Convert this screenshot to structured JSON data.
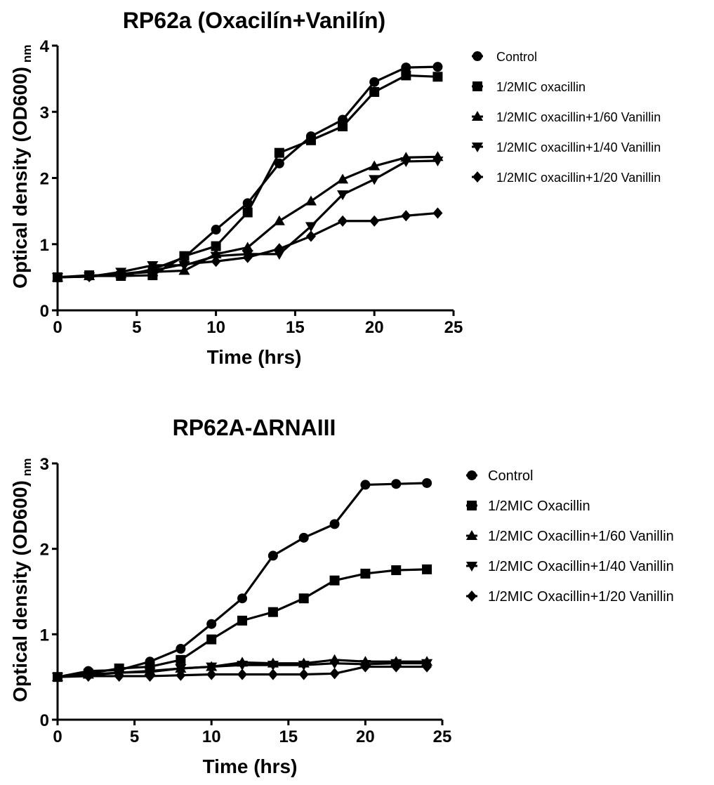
{
  "chart_data": [
    {
      "type": "line",
      "title": "RP62a (Oxacilín+Vanilín)",
      "xlabel": "Time (hrs)",
      "ylabel": "Optical density (OD600)",
      "ylabel_unit": "nm",
      "xlim": [
        0,
        25
      ],
      "ylim": [
        0,
        4
      ],
      "xticks": [
        "0",
        "5",
        "10",
        "15",
        "20",
        "25"
      ],
      "yticks": [
        "0",
        "1",
        "2",
        "3",
        "4"
      ],
      "grid": false,
      "legend_position": "right",
      "x": [
        0,
        2,
        4,
        6,
        8,
        10,
        12,
        14,
        16,
        18,
        20,
        22,
        24
      ],
      "series": [
        {
          "name": "Control",
          "marker": "circle",
          "values": [
            0.5,
            0.52,
            0.52,
            0.62,
            0.8,
            1.22,
            1.62,
            2.22,
            2.63,
            2.88,
            3.45,
            3.67,
            3.68
          ]
        },
        {
          "name": "1/2MIC oxacillin",
          "marker": "square",
          "values": [
            0.5,
            0.53,
            0.52,
            0.53,
            0.82,
            0.97,
            1.48,
            2.38,
            2.57,
            2.78,
            3.3,
            3.55,
            3.53
          ]
        },
        {
          "name": "1/2MIC oxacillin+1/60 Vanillin",
          "marker": "triangle-up",
          "values": [
            0.5,
            0.52,
            0.55,
            0.58,
            0.6,
            0.85,
            0.95,
            1.35,
            1.65,
            1.98,
            2.18,
            2.31,
            2.32
          ]
        },
        {
          "name": "1/2MIC oxacillin+1/40 Vanillin",
          "marker": "triangle-down",
          "values": [
            0.5,
            0.51,
            0.58,
            0.68,
            0.68,
            0.82,
            0.85,
            0.85,
            1.27,
            1.75,
            1.98,
            2.25,
            2.26
          ]
        },
        {
          "name": "1/2MIC oxacillin+1/20 Vanillin",
          "marker": "diamond",
          "values": [
            0.5,
            0.51,
            0.55,
            0.6,
            0.7,
            0.74,
            0.8,
            0.93,
            1.12,
            1.35,
            1.35,
            1.43,
            1.47
          ]
        }
      ]
    },
    {
      "type": "line",
      "title": "RP62A-ΔRNAIII",
      "xlabel": "Time (hrs)",
      "ylabel": "Optical density (OD600)",
      "ylabel_unit": "nm",
      "xlim": [
        0,
        25
      ],
      "ylim": [
        0,
        3
      ],
      "xticks": [
        "0",
        "5",
        "10",
        "15",
        "20",
        "25"
      ],
      "yticks": [
        "0",
        "1",
        "2",
        "3"
      ],
      "grid": false,
      "legend_position": "right",
      "x": [
        0,
        2,
        4,
        6,
        8,
        10,
        12,
        14,
        16,
        18,
        20,
        22,
        24
      ],
      "series": [
        {
          "name": "Control",
          "marker": "circle",
          "values": [
            0.5,
            0.57,
            0.58,
            0.68,
            0.83,
            1.12,
            1.42,
            1.92,
            2.13,
            2.29,
            2.75,
            2.76,
            2.77
          ]
        },
        {
          "name": "1/2MIC Oxacillin",
          "marker": "square",
          "values": [
            0.5,
            0.54,
            0.6,
            0.62,
            0.7,
            0.94,
            1.16,
            1.26,
            1.42,
            1.63,
            1.71,
            1.75,
            1.76
          ]
        },
        {
          "name": "1/2MIC Oxacillin+1/60 Vanillin",
          "marker": "triangle-up",
          "values": [
            0.5,
            0.53,
            0.55,
            0.57,
            0.6,
            0.62,
            0.67,
            0.66,
            0.66,
            0.7,
            0.68,
            0.68,
            0.68
          ]
        },
        {
          "name": "1/2MIC Oxacillin+1/40 Vanillin",
          "marker": "triangle-down",
          "values": [
            0.5,
            0.52,
            0.55,
            0.56,
            0.6,
            0.62,
            0.64,
            0.64,
            0.64,
            0.66,
            0.65,
            0.66,
            0.66
          ]
        },
        {
          "name": "1/2MIC Oxacillin+1/20 Vanillin",
          "marker": "diamond",
          "values": [
            0.5,
            0.51,
            0.51,
            0.51,
            0.52,
            0.53,
            0.53,
            0.53,
            0.53,
            0.54,
            0.62,
            0.62,
            0.62
          ]
        }
      ]
    }
  ]
}
